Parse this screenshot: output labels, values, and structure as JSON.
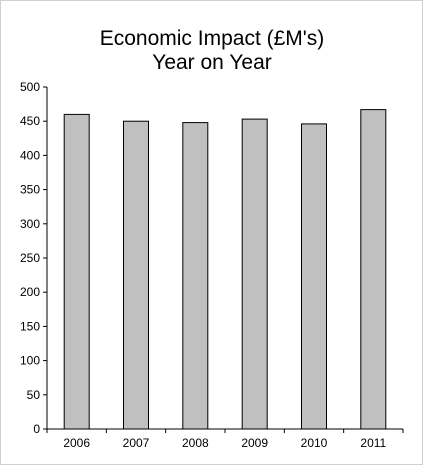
{
  "chart_data": {
    "type": "bar",
    "title": [
      "Economic Impact (£M's)",
      "Year on Year"
    ],
    "xlabel": "",
    "ylabel": "",
    "categories": [
      "2006",
      "2007",
      "2008",
      "2009",
      "2010",
      "2011"
    ],
    "values": [
      460,
      450,
      448,
      453,
      446,
      467
    ],
    "ylim": [
      0,
      500
    ],
    "yticks": [
      0,
      50,
      100,
      150,
      200,
      250,
      300,
      350,
      400,
      450,
      500
    ],
    "grid": false,
    "legend": "none",
    "colors": {
      "bar_fill": "#c0c0c0",
      "bar_stroke": "#000000",
      "axis": "#000000",
      "frame": "#d0d0d0"
    }
  }
}
